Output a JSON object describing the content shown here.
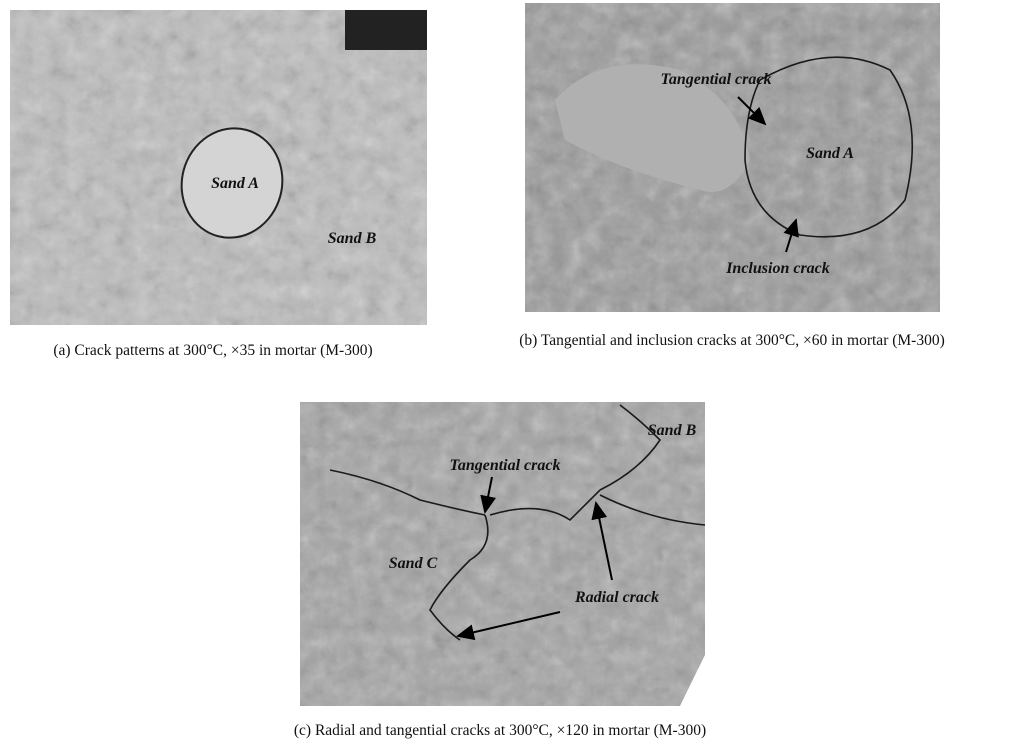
{
  "figure": {
    "panels": [
      {
        "labels": [
          "Sand A",
          "Sand B"
        ],
        "caption": "(a) Crack patterns at 300°C, ×35 in mortar (M-300)"
      },
      {
        "labels": [
          "Tangential crack",
          "Sand A",
          "Inclusion crack"
        ],
        "caption": "(b) Tangential and inclusion cracks at 300°C, ×60 in mortar (M-300)"
      },
      {
        "labels": [
          "Sand B",
          "Tangential crack",
          "Sand C",
          "Radial crack"
        ],
        "caption": "(c) Radial and tangential cracks at 300°C, ×120 in mortar (M-300)"
      }
    ]
  }
}
